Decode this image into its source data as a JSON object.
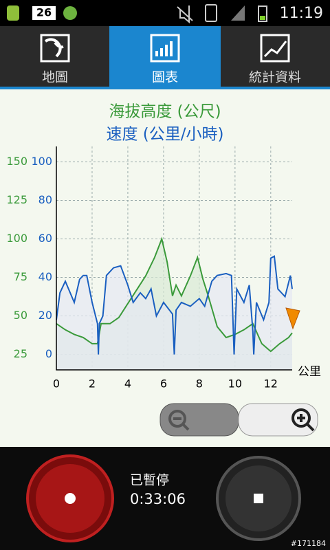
{
  "status_bar": {
    "notification_count": "26",
    "time": "11:19"
  },
  "tabs": [
    "地圖",
    "圖表",
    "統計資料"
  ],
  "chart_data": {
    "type": "line",
    "x_label": "公里",
    "xlim": [
      0,
      13.2
    ],
    "xticks": [
      0,
      2,
      4,
      6,
      8,
      10,
      12
    ],
    "ylim": [
      15,
      160
    ],
    "yticks": [
      25,
      50,
      75,
      100,
      125,
      150
    ],
    "y2lim": [
      -8,
      108
    ],
    "y2ticks": [
      0,
      20,
      40,
      60,
      80,
      100
    ],
    "grid": true,
    "series": [
      {
        "name": "海拔高度 (公尺)",
        "color": "#3a9a3a",
        "fill": "#d9ead6",
        "x": [
          0,
          0.5,
          1,
          1.5,
          2,
          2.3,
          2.5,
          3,
          3.5,
          4,
          4.5,
          5,
          5.5,
          5.9,
          6.2,
          6.5,
          6.7,
          7,
          7.5,
          7.9,
          8.2,
          8.5,
          9,
          9.5,
          10,
          10.5,
          11,
          11.5,
          12,
          12.5,
          13,
          13.2
        ],
        "values": [
          45,
          41,
          38,
          36,
          32,
          32,
          45,
          45,
          49,
          58,
          67,
          76,
          88,
          100,
          85,
          63,
          70,
          63,
          76,
          88,
          74,
          63,
          43,
          36,
          38,
          41,
          45,
          32,
          27,
          32,
          36,
          39
        ]
      },
      {
        "name": "速度 (公里/小時)",
        "color": "#1a5fc0",
        "fill": "#e6e8f4",
        "axis": "y2",
        "x": [
          0,
          0.2,
          0.5,
          1,
          1.3,
          1.5,
          1.7,
          2,
          2.3,
          2.35,
          2.4,
          2.6,
          2.8,
          3.2,
          3.6,
          4,
          4.3,
          4.7,
          5,
          5.3,
          5.6,
          6,
          6.5,
          6.6,
          6.7,
          7,
          7.5,
          8,
          8.3,
          8.7,
          9,
          9.5,
          9.8,
          9.95,
          10.1,
          10.5,
          10.8,
          11,
          11.05,
          11.2,
          11.6,
          11.9,
          12,
          12.2,
          12.4,
          12.8,
          13.1,
          13.2
        ],
        "values": [
          18,
          32,
          38,
          27,
          39,
          41,
          41,
          27,
          16,
          0,
          16,
          20,
          41,
          45,
          46,
          36,
          27,
          32,
          29,
          34,
          20,
          27,
          21,
          0,
          23,
          27,
          25,
          29,
          25,
          38,
          41,
          42,
          41,
          0,
          34,
          27,
          36,
          12,
          0,
          27,
          18,
          27,
          50,
          51,
          34,
          30,
          41,
          34
        ]
      }
    ]
  },
  "controls": {
    "status": "已暫停",
    "elapsed": "0:33:06"
  },
  "watermark": "#171184"
}
